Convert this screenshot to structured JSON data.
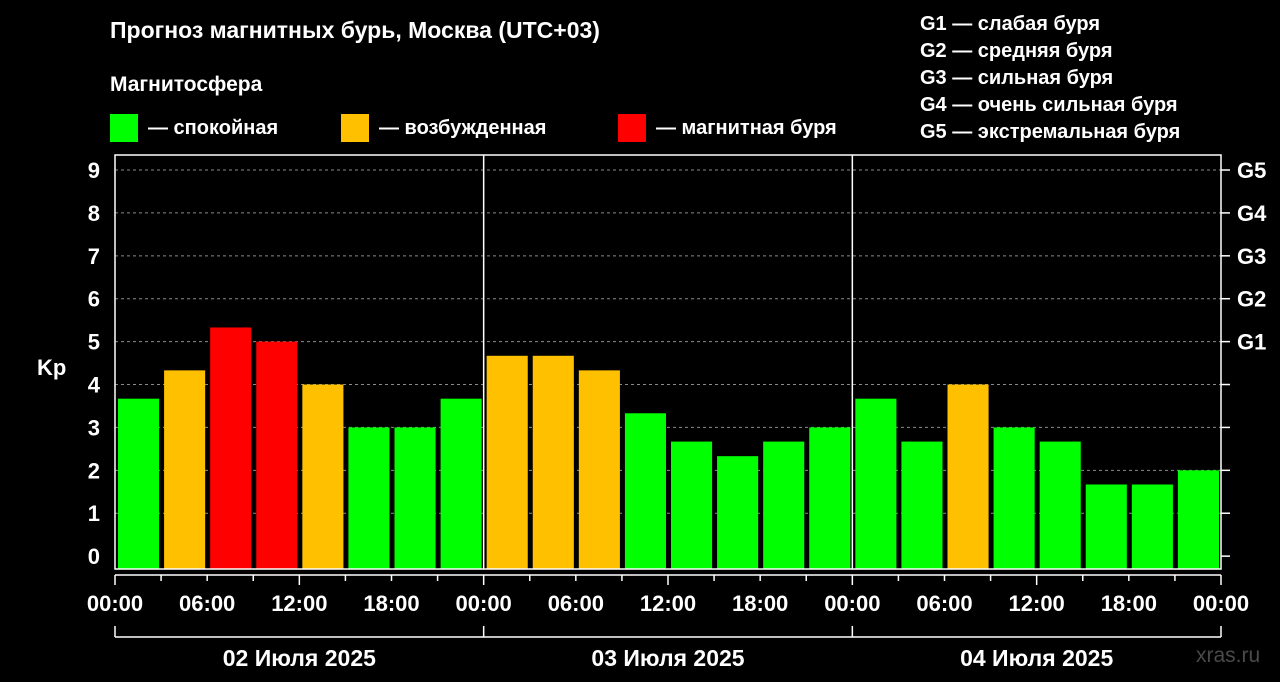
{
  "header": {
    "title": "Прогноз магнитных бурь, Москва (UTC+03)",
    "subtitle": "Магнитосфера"
  },
  "legend": [
    {
      "label": "— спокойная",
      "color": "#00ff00"
    },
    {
      "label": "— возбужденная",
      "color": "#ffc000"
    },
    {
      "label": "— магнитная буря",
      "color": "#ff0000"
    }
  ],
  "g_legend": [
    "G1 — слабая буря",
    "G2 — средняя буря",
    "G3 — сильная буря",
    "G4 — очень сильная буря",
    "G5 — экстремальная буря"
  ],
  "watermark": "xras.ru",
  "chart_data": {
    "type": "bar",
    "ylabel": "Kp",
    "ylim": [
      -0.3,
      9.35
    ],
    "y_ticks": [
      0,
      1,
      2,
      3,
      4,
      5,
      6,
      7,
      8,
      9
    ],
    "right_axis_labels": [
      {
        "value": 5,
        "label": "G1"
      },
      {
        "value": 6,
        "label": "G2"
      },
      {
        "value": 7,
        "label": "G3"
      },
      {
        "value": 8,
        "label": "G4"
      },
      {
        "value": 9,
        "label": "G5"
      }
    ],
    "grid": true,
    "x_tick_labels": [
      "00:00",
      "06:00",
      "12:00",
      "18:00",
      "00:00",
      "06:00",
      "12:00",
      "18:00",
      "00:00",
      "06:00",
      "12:00",
      "18:00",
      "00:00"
    ],
    "days": [
      "02 Июля 2025",
      "03 Июля 2025",
      "04 Июля 2025"
    ],
    "colors": {
      "calm": "#00ff00",
      "active": "#ffc000",
      "storm": "#ff0000"
    },
    "bars": [
      {
        "value": 3.67,
        "level": "calm"
      },
      {
        "value": 4.33,
        "level": "active"
      },
      {
        "value": 5.33,
        "level": "storm"
      },
      {
        "value": 5.0,
        "level": "storm"
      },
      {
        "value": 4.0,
        "level": "active"
      },
      {
        "value": 3.0,
        "level": "calm"
      },
      {
        "value": 3.0,
        "level": "calm"
      },
      {
        "value": 3.67,
        "level": "calm"
      },
      {
        "value": 4.67,
        "level": "active"
      },
      {
        "value": 4.67,
        "level": "active"
      },
      {
        "value": 4.33,
        "level": "active"
      },
      {
        "value": 3.33,
        "level": "calm"
      },
      {
        "value": 2.67,
        "level": "calm"
      },
      {
        "value": 2.33,
        "level": "calm"
      },
      {
        "value": 2.67,
        "level": "calm"
      },
      {
        "value": 3.0,
        "level": "calm"
      },
      {
        "value": 3.67,
        "level": "calm"
      },
      {
        "value": 2.67,
        "level": "calm"
      },
      {
        "value": 4.0,
        "level": "active"
      },
      {
        "value": 3.0,
        "level": "calm"
      },
      {
        "value": 2.67,
        "level": "calm"
      },
      {
        "value": 1.67,
        "level": "calm"
      },
      {
        "value": 1.67,
        "level": "calm"
      },
      {
        "value": 2.0,
        "level": "calm"
      }
    ]
  }
}
